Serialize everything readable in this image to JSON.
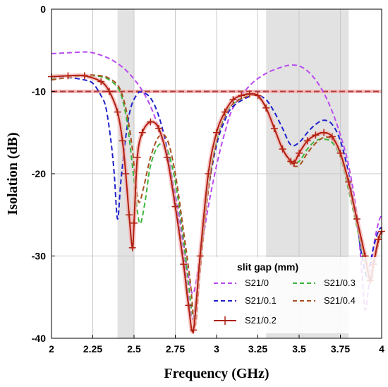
{
  "chart_data": {
    "type": "line",
    "title": "",
    "xlabel": "Frequency (GHz)",
    "ylabel": "Isolation (dB)",
    "xlim": [
      2,
      4
    ],
    "ylim": [
      -40,
      0
    ],
    "x_ticks": [
      2,
      2.25,
      2.5,
      2.75,
      3,
      3.25,
      3.5,
      3.75,
      4
    ],
    "x_tick_labels": [
      "2",
      "2.25",
      "2.5",
      "2.75",
      "3",
      "3.25",
      "3.5",
      "3.75",
      "4"
    ],
    "y_ticks": [
      0,
      -10,
      -20,
      -30,
      -40
    ],
    "y_tick_labels": [
      "0",
      "-10",
      "-20",
      "-30",
      "-40"
    ],
    "grid": true,
    "shaded_bands": [
      [
        2.4,
        2.5
      ],
      [
        3.3,
        3.8
      ]
    ],
    "reference_line": -10,
    "legend": {
      "title": "slit gap (mm)",
      "placement": "bottom-right"
    },
    "series": [
      {
        "name": "S21/0",
        "color": "#b84af0",
        "style": "dashed",
        "x": [
          2.0,
          2.1,
          2.2,
          2.25,
          2.3,
          2.35,
          2.4,
          2.45,
          2.5,
          2.55,
          2.6,
          2.65,
          2.7,
          2.75,
          2.8,
          2.83,
          2.86,
          2.9,
          2.95,
          3.0,
          3.05,
          3.1,
          3.2,
          3.3,
          3.4,
          3.45,
          3.5,
          3.55,
          3.6,
          3.65,
          3.7,
          3.75,
          3.8,
          3.85,
          3.88,
          3.9,
          3.92,
          3.95,
          3.98,
          4.0
        ],
        "y": [
          -5.4,
          -5.3,
          -5.2,
          -5.3,
          -5.6,
          -6.0,
          -6.6,
          -7.4,
          -8.5,
          -9.9,
          -11.8,
          -14.5,
          -18.0,
          -22.5,
          -28.5,
          -32.5,
          -34.5,
          -30.0,
          -24.0,
          -19.0,
          -15.0,
          -12.0,
          -9.3,
          -7.8,
          -7.0,
          -6.8,
          -6.9,
          -7.5,
          -8.6,
          -10.2,
          -12.4,
          -15.3,
          -19.0,
          -25.0,
          -32.0,
          -36.5,
          -34.0,
          -29.0,
          -26.0,
          -25.0
        ]
      },
      {
        "name": "S21/0.1",
        "color": "#2020cc",
        "style": "dashed",
        "x": [
          2.0,
          2.1,
          2.2,
          2.25,
          2.3,
          2.33,
          2.36,
          2.38,
          2.4,
          2.42,
          2.45,
          2.48,
          2.52,
          2.55,
          2.6,
          2.65,
          2.7,
          2.75,
          2.8,
          2.83,
          2.86,
          2.9,
          2.95,
          3.0,
          3.05,
          3.1,
          3.2,
          3.25,
          3.3,
          3.35,
          3.4,
          3.45,
          3.5,
          3.55,
          3.6,
          3.65,
          3.7,
          3.75,
          3.8,
          3.85,
          3.88,
          3.91,
          3.93,
          3.95,
          3.98,
          4.0
        ],
        "y": [
          -8.2,
          -8.3,
          -8.6,
          -9.0,
          -10.5,
          -12.0,
          -16.0,
          -20.0,
          -25.5,
          -21.0,
          -15.5,
          -12.0,
          -10.3,
          -10.1,
          -10.8,
          -13.0,
          -17.0,
          -23.0,
          -30.0,
          -35.0,
          -37.5,
          -31.0,
          -22.0,
          -16.5,
          -13.5,
          -11.8,
          -10.6,
          -10.5,
          -11.0,
          -12.5,
          -14.5,
          -16.5,
          -16.2,
          -15.0,
          -14.0,
          -13.5,
          -14.0,
          -16.0,
          -20.0,
          -26.0,
          -30.0,
          -32.5,
          -31.0,
          -29.0,
          -27.0,
          -26.5
        ]
      },
      {
        "name": "S21/0.2",
        "color": "#b02010",
        "style": "solid-cross",
        "x": [
          2.0,
          2.1,
          2.2,
          2.3,
          2.35,
          2.4,
          2.43,
          2.45,
          2.47,
          2.49,
          2.5,
          2.52,
          2.55,
          2.6,
          2.65,
          2.7,
          2.75,
          2.8,
          2.83,
          2.86,
          2.9,
          2.95,
          3.0,
          3.05,
          3.1,
          3.15,
          3.2,
          3.25,
          3.3,
          3.35,
          3.4,
          3.45,
          3.47,
          3.5,
          3.55,
          3.6,
          3.65,
          3.7,
          3.75,
          3.8,
          3.85,
          3.9,
          3.93,
          3.95,
          3.98,
          4.0
        ],
        "y": [
          -8.2,
          -8.1,
          -8.1,
          -8.8,
          -10.0,
          -12.5,
          -16.0,
          -20.0,
          -25.0,
          -29.0,
          -26.0,
          -18.0,
          -15.0,
          -13.7,
          -14.5,
          -18.0,
          -24.0,
          -31.0,
          -36.0,
          -39.0,
          -30.0,
          -20.0,
          -15.0,
          -12.5,
          -11.0,
          -10.5,
          -10.3,
          -10.5,
          -12.0,
          -14.5,
          -17.0,
          -18.5,
          -18.7,
          -17.5,
          -16.0,
          -15.3,
          -15.0,
          -15.5,
          -17.5,
          -21.0,
          -25.5,
          -30.0,
          -33.0,
          -31.0,
          -28.0,
          -27.0
        ]
      },
      {
        "name": "S21/0.3",
        "color": "#3cb43c",
        "style": "dashed",
        "x": [
          2.0,
          2.1,
          2.2,
          2.3,
          2.35,
          2.4,
          2.43,
          2.46,
          2.49,
          2.52,
          2.54,
          2.57,
          2.6,
          2.65,
          2.7,
          2.75,
          2.8,
          2.83,
          2.86,
          2.9,
          2.95,
          3.0,
          3.05,
          3.1,
          3.2,
          3.25,
          3.3,
          3.35,
          3.4,
          3.45,
          3.5,
          3.55,
          3.6,
          3.65,
          3.7,
          3.75,
          3.8,
          3.85,
          3.9,
          3.93,
          3.95,
          3.98,
          4.0
        ],
        "y": [
          -8.5,
          -8.3,
          -8.1,
          -8.2,
          -8.6,
          -9.5,
          -11.0,
          -14.0,
          -19.0,
          -24.5,
          -26.0,
          -23.0,
          -19.0,
          -16.5,
          -17.0,
          -21.0,
          -28.0,
          -33.5,
          -37.0,
          -31.0,
          -21.5,
          -16.0,
          -13.0,
          -11.5,
          -10.4,
          -10.6,
          -12.0,
          -14.5,
          -17.0,
          -18.5,
          -18.5,
          -17.0,
          -16.0,
          -15.8,
          -16.2,
          -18.0,
          -22.0,
          -26.5,
          -31.0,
          -33.0,
          -31.5,
          -28.5,
          -27.5
        ]
      },
      {
        "name": "S21/0.4",
        "color": "#a85020",
        "style": "dashed",
        "x": [
          2.0,
          2.1,
          2.2,
          2.3,
          2.35,
          2.4,
          2.43,
          2.46,
          2.49,
          2.51,
          2.53,
          2.56,
          2.6,
          2.65,
          2.7,
          2.75,
          2.8,
          2.84,
          2.87,
          2.9,
          2.95,
          3.0,
          3.05,
          3.1,
          3.2,
          3.25,
          3.3,
          3.35,
          3.4,
          3.45,
          3.5,
          3.55,
          3.6,
          3.65,
          3.7,
          3.75,
          3.8,
          3.85,
          3.9,
          3.93,
          3.95,
          3.98,
          4.0
        ],
        "y": [
          -8.6,
          -8.3,
          -8.0,
          -8.1,
          -8.4,
          -9.2,
          -10.5,
          -13.0,
          -17.0,
          -21.0,
          -23.5,
          -21.5,
          -18.0,
          -15.5,
          -15.8,
          -20.0,
          -27.0,
          -33.0,
          -38.5,
          -32.0,
          -22.0,
          -16.0,
          -13.0,
          -11.5,
          -10.5,
          -10.7,
          -12.0,
          -14.5,
          -17.0,
          -18.8,
          -19.0,
          -17.5,
          -16.3,
          -15.6,
          -15.8,
          -17.5,
          -21.5,
          -26.0,
          -30.5,
          -32.5,
          -31.0,
          -28.5,
          -27.0
        ]
      }
    ]
  }
}
